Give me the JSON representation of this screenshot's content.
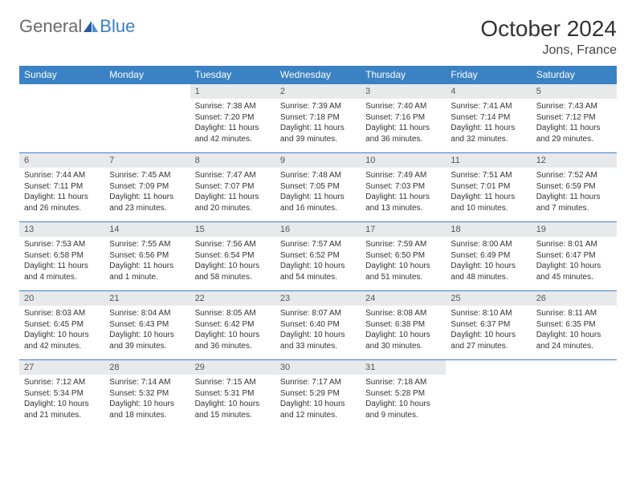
{
  "logo": {
    "word1": "General",
    "word2": "Blue"
  },
  "title": "October 2024",
  "location": "Jons, France",
  "colors": {
    "header_bg": "#3b82c4",
    "header_text": "#ffffff",
    "daynum_bg": "#e7e9eb",
    "daynum_text": "#555555",
    "border": "#3b82c4",
    "logo_gray": "#6b6b6b",
    "logo_blue": "#3b7fc4"
  },
  "weekdays": [
    "Sunday",
    "Monday",
    "Tuesday",
    "Wednesday",
    "Thursday",
    "Friday",
    "Saturday"
  ],
  "grid": [
    [
      null,
      null,
      {
        "n": "1",
        "sr": "7:38 AM",
        "ss": "7:20 PM",
        "dl": "11 hours and 42 minutes."
      },
      {
        "n": "2",
        "sr": "7:39 AM",
        "ss": "7:18 PM",
        "dl": "11 hours and 39 minutes."
      },
      {
        "n": "3",
        "sr": "7:40 AM",
        "ss": "7:16 PM",
        "dl": "11 hours and 36 minutes."
      },
      {
        "n": "4",
        "sr": "7:41 AM",
        "ss": "7:14 PM",
        "dl": "11 hours and 32 minutes."
      },
      {
        "n": "5",
        "sr": "7:43 AM",
        "ss": "7:12 PM",
        "dl": "11 hours and 29 minutes."
      }
    ],
    [
      {
        "n": "6",
        "sr": "7:44 AM",
        "ss": "7:11 PM",
        "dl": "11 hours and 26 minutes."
      },
      {
        "n": "7",
        "sr": "7:45 AM",
        "ss": "7:09 PM",
        "dl": "11 hours and 23 minutes."
      },
      {
        "n": "8",
        "sr": "7:47 AM",
        "ss": "7:07 PM",
        "dl": "11 hours and 20 minutes."
      },
      {
        "n": "9",
        "sr": "7:48 AM",
        "ss": "7:05 PM",
        "dl": "11 hours and 16 minutes."
      },
      {
        "n": "10",
        "sr": "7:49 AM",
        "ss": "7:03 PM",
        "dl": "11 hours and 13 minutes."
      },
      {
        "n": "11",
        "sr": "7:51 AM",
        "ss": "7:01 PM",
        "dl": "11 hours and 10 minutes."
      },
      {
        "n": "12",
        "sr": "7:52 AM",
        "ss": "6:59 PM",
        "dl": "11 hours and 7 minutes."
      }
    ],
    [
      {
        "n": "13",
        "sr": "7:53 AM",
        "ss": "6:58 PM",
        "dl": "11 hours and 4 minutes."
      },
      {
        "n": "14",
        "sr": "7:55 AM",
        "ss": "6:56 PM",
        "dl": "11 hours and 1 minute."
      },
      {
        "n": "15",
        "sr": "7:56 AM",
        "ss": "6:54 PM",
        "dl": "10 hours and 58 minutes."
      },
      {
        "n": "16",
        "sr": "7:57 AM",
        "ss": "6:52 PM",
        "dl": "10 hours and 54 minutes."
      },
      {
        "n": "17",
        "sr": "7:59 AM",
        "ss": "6:50 PM",
        "dl": "10 hours and 51 minutes."
      },
      {
        "n": "18",
        "sr": "8:00 AM",
        "ss": "6:49 PM",
        "dl": "10 hours and 48 minutes."
      },
      {
        "n": "19",
        "sr": "8:01 AM",
        "ss": "6:47 PM",
        "dl": "10 hours and 45 minutes."
      }
    ],
    [
      {
        "n": "20",
        "sr": "8:03 AM",
        "ss": "6:45 PM",
        "dl": "10 hours and 42 minutes."
      },
      {
        "n": "21",
        "sr": "8:04 AM",
        "ss": "6:43 PM",
        "dl": "10 hours and 39 minutes."
      },
      {
        "n": "22",
        "sr": "8:05 AM",
        "ss": "6:42 PM",
        "dl": "10 hours and 36 minutes."
      },
      {
        "n": "23",
        "sr": "8:07 AM",
        "ss": "6:40 PM",
        "dl": "10 hours and 33 minutes."
      },
      {
        "n": "24",
        "sr": "8:08 AM",
        "ss": "6:38 PM",
        "dl": "10 hours and 30 minutes."
      },
      {
        "n": "25",
        "sr": "8:10 AM",
        "ss": "6:37 PM",
        "dl": "10 hours and 27 minutes."
      },
      {
        "n": "26",
        "sr": "8:11 AM",
        "ss": "6:35 PM",
        "dl": "10 hours and 24 minutes."
      }
    ],
    [
      {
        "n": "27",
        "sr": "7:12 AM",
        "ss": "5:34 PM",
        "dl": "10 hours and 21 minutes."
      },
      {
        "n": "28",
        "sr": "7:14 AM",
        "ss": "5:32 PM",
        "dl": "10 hours and 18 minutes."
      },
      {
        "n": "29",
        "sr": "7:15 AM",
        "ss": "5:31 PM",
        "dl": "10 hours and 15 minutes."
      },
      {
        "n": "30",
        "sr": "7:17 AM",
        "ss": "5:29 PM",
        "dl": "10 hours and 12 minutes."
      },
      {
        "n": "31",
        "sr": "7:18 AM",
        "ss": "5:28 PM",
        "dl": "10 hours and 9 minutes."
      },
      null,
      null
    ]
  ]
}
